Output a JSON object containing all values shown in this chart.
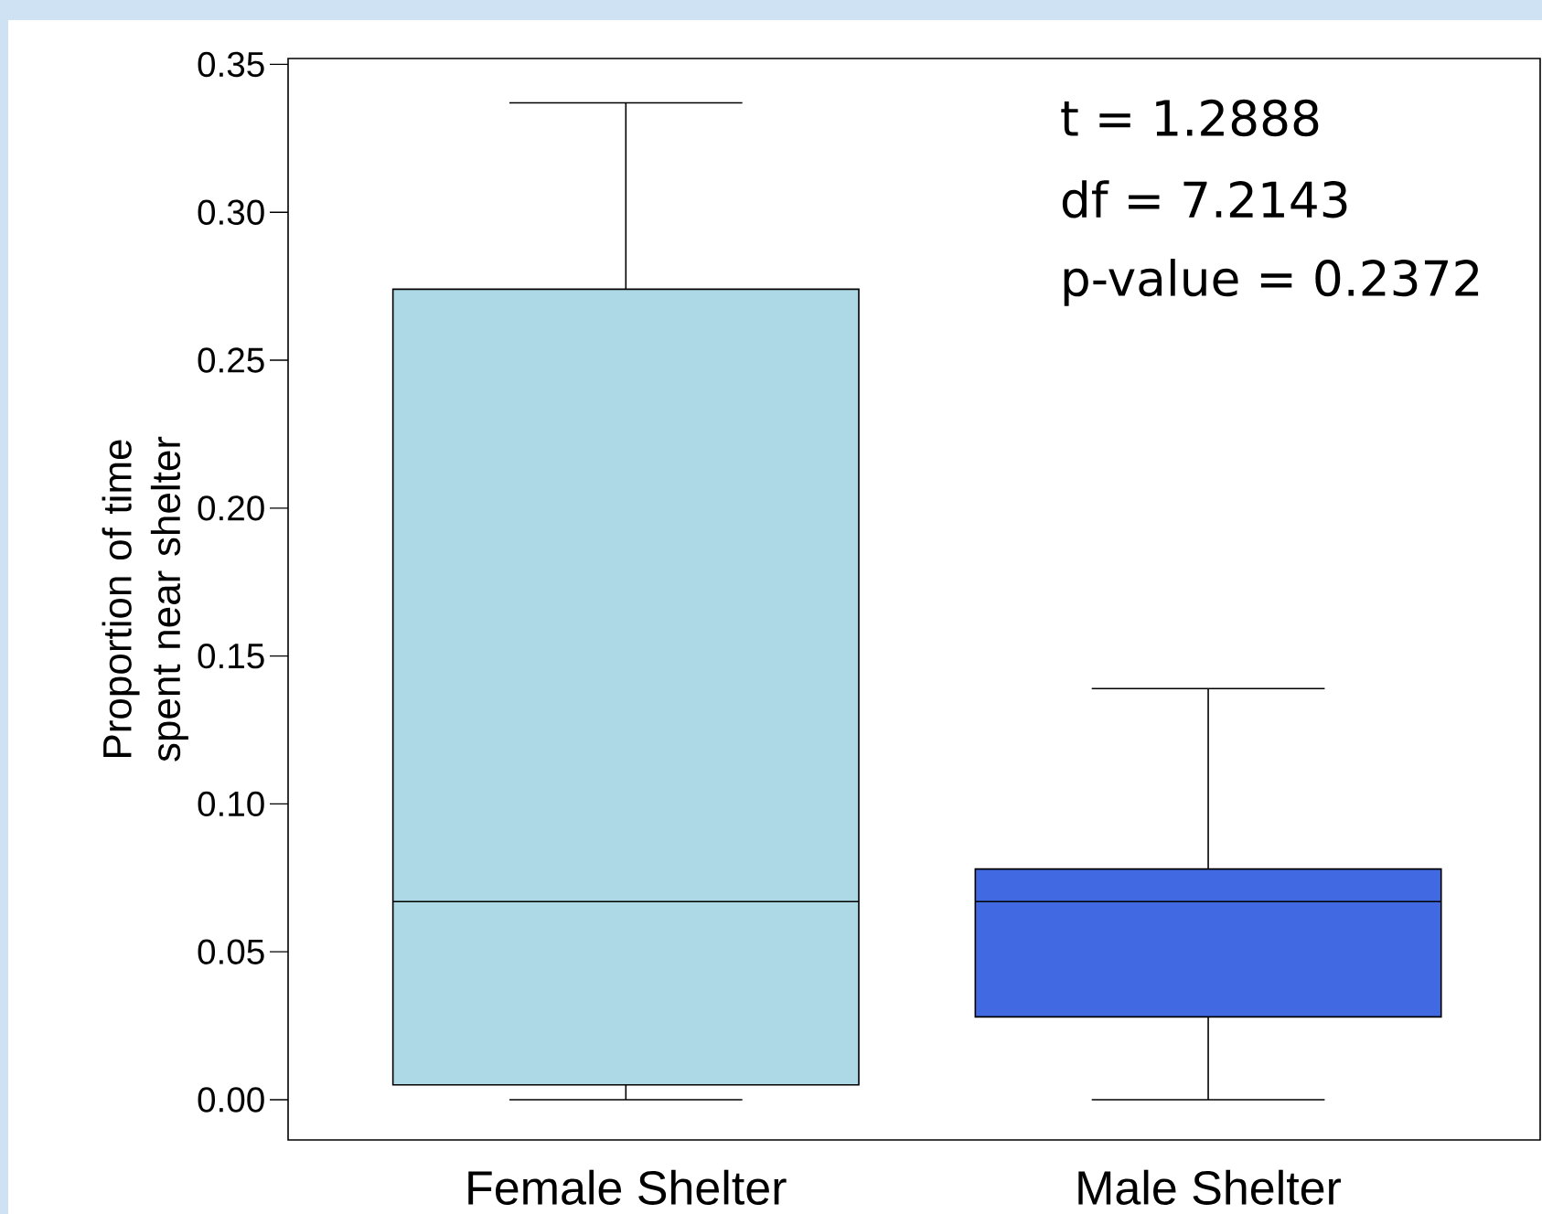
{
  "chart_data": {
    "type": "box",
    "ylabel": "Proportion of time spent near shelter",
    "categories": [
      "Female Shelter",
      "Male Shelter"
    ],
    "colors": [
      "#add8e6",
      "#4169e1"
    ],
    "boxes": [
      {
        "low": 0.0,
        "q1": 0.005,
        "median": 0.067,
        "q3": 0.274,
        "high": 0.337
      },
      {
        "low": 0.0,
        "q1": 0.028,
        "median": 0.067,
        "q3": 0.078,
        "high": 0.139
      }
    ],
    "ylim": [
      -0.0136,
      0.352
    ],
    "yticks": [
      {
        "value": 0,
        "label": "0.00"
      },
      {
        "value": 0.05,
        "label": "0.05"
      },
      {
        "value": 0.1,
        "label": "0.10"
      },
      {
        "value": 0.15,
        "label": "0.15"
      },
      {
        "value": 0.2,
        "label": "0.20"
      },
      {
        "value": 0.25,
        "label": "0.25"
      },
      {
        "value": 0.3,
        "label": "0.30"
      },
      {
        "value": 0.35,
        "label": "0.35"
      }
    ],
    "grid": false,
    "annotations": [
      "t = 1.2888",
      "df = 7.2143",
      "p-value = 0.2372"
    ]
  }
}
